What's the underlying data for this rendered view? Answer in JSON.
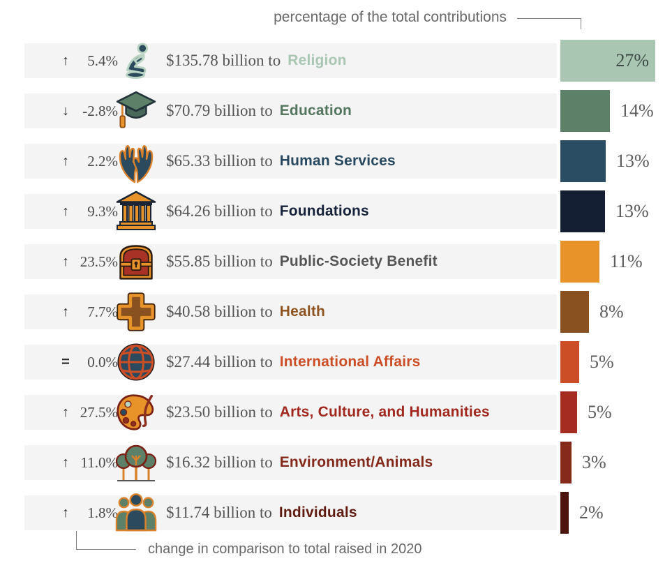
{
  "header": {
    "label": "percentage of the total contributions"
  },
  "footer": {
    "label": "change in comparison to total raised in 2020"
  },
  "rows": [
    {
      "direction": "up",
      "arrow": "↑",
      "change": "5.4%",
      "icon": "praying-person-icon",
      "amount": "$135.78 billion to",
      "category": "Religion",
      "percent_label": "27%",
      "percent": 27,
      "value_billions": 135.78,
      "bar_color": "#a9c6b3",
      "text_color": "#a9c6b3",
      "label_inside": true
    },
    {
      "direction": "down",
      "arrow": "↓",
      "change": "-2.8%",
      "icon": "graduation-cap-icon",
      "amount": "$70.79 billion to",
      "category": "Education",
      "percent_label": "14%",
      "percent": 14,
      "value_billions": 70.79,
      "bar_color": "#5d8068",
      "text_color": "#54755e",
      "label_inside": false
    },
    {
      "direction": "up",
      "arrow": "↑",
      "change": "2.2%",
      "icon": "open-hands-icon",
      "amount": "$65.33 billion to",
      "category": "Human Services",
      "percent_label": "13%",
      "percent": 13,
      "value_billions": 65.33,
      "bar_color": "#2b4d63",
      "text_color": "#27485e",
      "label_inside": false
    },
    {
      "direction": "up",
      "arrow": "↑",
      "change": "9.3%",
      "icon": "bank-building-icon",
      "amount": "$64.26 billion to",
      "category": "Foundations",
      "percent_label": "13%",
      "percent": 13,
      "value_billions": 64.26,
      "bar_color": "#141f33",
      "text_color": "#16213a",
      "label_inside": false
    },
    {
      "direction": "up",
      "arrow": "↑",
      "change": "23.5%",
      "icon": "treasure-chest-icon",
      "amount": "$55.85 billion to",
      "category": "Public-Society Benefit",
      "percent_label": "11%",
      "percent": 11,
      "value_billions": 55.85,
      "bar_color": "#e8922a",
      "text_color": "#555555",
      "label_inside": false
    },
    {
      "direction": "up",
      "arrow": "↑",
      "change": "7.7%",
      "icon": "health-cross-icon",
      "amount": "$40.58 billion to",
      "category": "Health",
      "percent_label": "8%",
      "percent": 8,
      "value_billions": 40.58,
      "bar_color": "#8a5120",
      "text_color": "#8f5420",
      "label_inside": false
    },
    {
      "direction": "equal",
      "arrow": "=",
      "change": "0.0%",
      "icon": "globe-icon",
      "amount": "$27.44 billion to",
      "category": "International Affairs",
      "percent_label": "5%",
      "percent": 5,
      "value_billions": 27.44,
      "bar_color": "#cb4e27",
      "text_color": "#cc4e27",
      "label_inside": false
    },
    {
      "direction": "up",
      "arrow": "↑",
      "change": "27.5%",
      "icon": "art-palette-icon",
      "amount": "$23.50 billion to",
      "category": "Arts, Culture, and Humanities",
      "percent_label": "5%",
      "percent": 5,
      "value_billions": 23.5,
      "bar_color": "#a52c20",
      "text_color": "#a0281e",
      "label_inside": false
    },
    {
      "direction": "up",
      "arrow": "↑",
      "change": "11.0%",
      "icon": "trees-icon",
      "amount": "$16.32 billion to",
      "category": "Environment/Animals",
      "percent_label": "3%",
      "percent": 3,
      "value_billions": 16.32,
      "bar_color": "#862b1c",
      "text_color": "#84281a",
      "label_inside": false
    },
    {
      "direction": "up",
      "arrow": "↑",
      "change": "1.8%",
      "icon": "people-group-icon",
      "amount": "$11.74 billion to",
      "category": "Individuals",
      "percent_label": "2%",
      "percent": 2,
      "value_billions": 11.74,
      "bar_color": "#4c150e",
      "text_color": "#611c12",
      "label_inside": false
    }
  ],
  "chart_data": {
    "type": "bar",
    "title": "",
    "orientation": "horizontal",
    "categories": [
      "Religion",
      "Education",
      "Human Services",
      "Foundations",
      "Public-Society Benefit",
      "Health",
      "International Affairs",
      "Arts, Culture, and Humanities",
      "Environment/Animals",
      "Individuals"
    ],
    "series": [
      {
        "name": "contributions_billions_usd",
        "values": [
          135.78,
          70.79,
          65.33,
          64.26,
          55.85,
          40.58,
          27.44,
          23.5,
          16.32,
          11.74
        ]
      },
      {
        "name": "percent_of_total_contributions",
        "values": [
          27,
          14,
          13,
          13,
          11,
          8,
          5,
          5,
          3,
          2
        ]
      },
      {
        "name": "change_vs_total_raised_2020_percent",
        "values": [
          5.4,
          -2.8,
          2.2,
          9.3,
          23.5,
          7.7,
          0.0,
          27.5,
          11.0,
          1.8
        ]
      }
    ],
    "bar_colors": [
      "#a9c6b3",
      "#5d8068",
      "#2b4d63",
      "#141f33",
      "#e8922a",
      "#8a5120",
      "#cb4e27",
      "#a52c20",
      "#862b1c",
      "#4c150e"
    ],
    "annotations": [
      "percentage of the total contributions",
      "change in comparison to total raised in 2020"
    ],
    "legend": "none",
    "grid": false
  }
}
